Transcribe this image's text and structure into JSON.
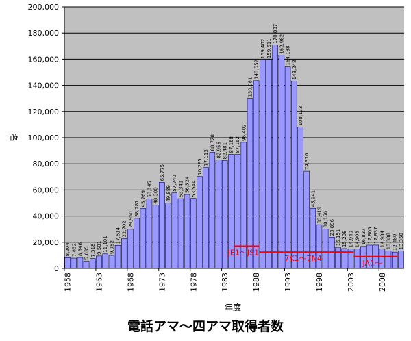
{
  "chart_data": {
    "type": "bar",
    "title": "電話アマ～四アマ取得者数",
    "xlabel": "年度",
    "ylabel": "名",
    "ylim": [
      0,
      200000
    ],
    "yticks": [
      "0",
      "20,000",
      "40,000",
      "60,000",
      "80,000",
      "100,000",
      "120,000",
      "140,000",
      "160,000",
      "180,000",
      "200,000"
    ],
    "xtick_labels": [
      "1958",
      "1963",
      "1968",
      "1973",
      "1978",
      "1983",
      "1988",
      "1993",
      "1998",
      "2003",
      "2008"
    ],
    "grid": true,
    "categories": [
      1958,
      1959,
      1960,
      1961,
      1962,
      1963,
      1964,
      1965,
      1966,
      1967,
      1968,
      1969,
      1970,
      1971,
      1972,
      1973,
      1974,
      1975,
      1976,
      1977,
      1978,
      1979,
      1980,
      1981,
      1982,
      1983,
      1984,
      1985,
      1986,
      1987,
      1988,
      1989,
      1990,
      1991,
      1992,
      1993,
      1994,
      1995,
      1996,
      1997,
      1998,
      1999,
      2000,
      2001,
      2002,
      2003,
      2004,
      2005,
      2006,
      2007,
      2008,
      2009,
      2010,
      2011
    ],
    "values": [
      8204,
      7832,
      8346,
      5635,
      7518,
      9501,
      11101,
      9952,
      17614,
      22702,
      29950,
      38281,
      45769,
      53145,
      48300,
      65775,
      49889,
      57740,
      53341,
      56524,
      53544,
      70295,
      77113,
      88728,
      82956,
      82481,
      87168,
      87162,
      96402,
      130081,
      143552,
      159402,
      159611,
      170837,
      162982,
      154188,
      143248,
      108123,
      74310,
      45941,
      33419,
      30166,
      23896,
      16151,
      15208,
      14940,
      14903,
      16837,
      17805,
      17837,
      14984,
      13388,
      12480,
      13350
    ],
    "data_labels": [
      "8,204",
      "7,832",
      "8,346",
      "5,635",
      "7,518",
      "9,501",
      "11,101",
      "9,952",
      "17,614",
      "22,702",
      "29,950",
      "38,281",
      "45,769",
      "53,145",
      "48,300",
      "65,775",
      "49,889",
      "57,740",
      "53,341",
      "56,524",
      "53,544",
      "70,295",
      "77,113",
      "88,728",
      "82,956",
      "82,481",
      "87,168",
      "87,162",
      "96,402",
      "130,081",
      "143,552",
      "159,402",
      "159,611",
      "170,837",
      "162,982",
      "154,188",
      "143,248",
      "108,123",
      "74,310",
      "45,941",
      "33,419",
      "30,166",
      "23,896",
      "16,151",
      "15,208",
      "14,940",
      "14,903",
      "16,837",
      "17,805",
      "17,837",
      "14,984",
      "13,388",
      "12,480",
      "13,350"
    ],
    "bar_color": "#9999ff",
    "plot_bg": "#c0c0c0",
    "annotations": [
      {
        "label": "JE1～JS1",
        "x_start": 1985,
        "x_end": 1989,
        "y": 17000,
        "color": "#ff0000"
      },
      {
        "label": "7K1～7N4",
        "x_start": 1989,
        "x_end": 2004,
        "y": 12500,
        "color": "#ff0000"
      },
      {
        "label": "JA1～",
        "x_start": 2004,
        "x_end": 2011,
        "y": 9000,
        "color": "#ff0000"
      }
    ]
  }
}
